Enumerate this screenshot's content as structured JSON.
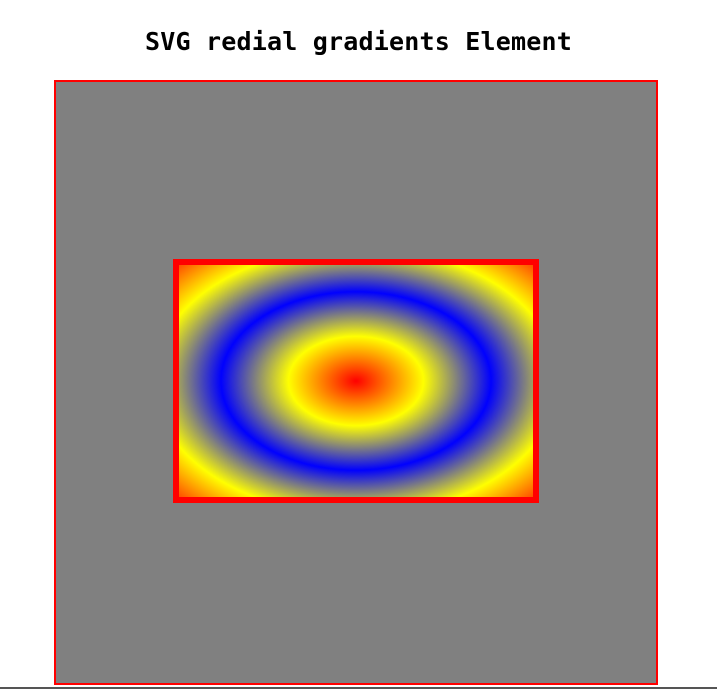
{
  "page": {
    "title": "SVG redial gradients Element"
  },
  "canvas": {
    "background_color": "#808080",
    "border_color": "#ff0000"
  },
  "gradient_rect": {
    "stroke_color": "#ff0000",
    "gradient_stops": [
      {
        "offset": "0%",
        "color": "#ff0000"
      },
      {
        "offset": "25%",
        "color": "#ffff00"
      },
      {
        "offset": "50%",
        "color": "#0000ff"
      },
      {
        "offset": "75%",
        "color": "#ffff00"
      },
      {
        "offset": "100%",
        "color": "#ff0000"
      }
    ]
  }
}
